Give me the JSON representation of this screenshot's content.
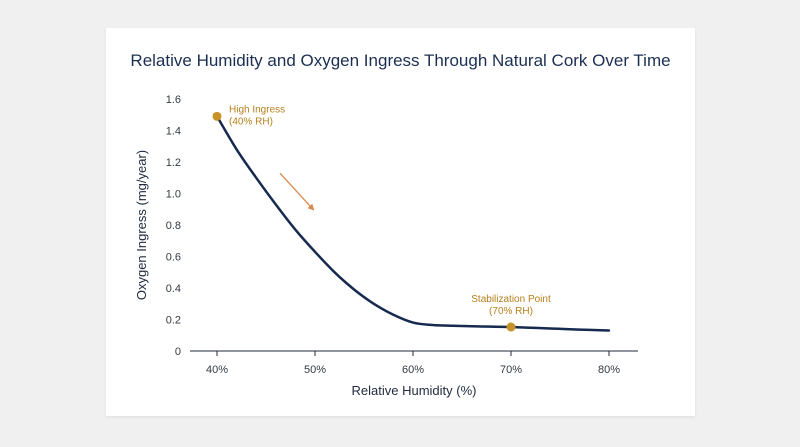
{
  "chart_data": {
    "type": "line",
    "title": "Relative Humidity and Oxygen Ingress Through Natural Cork Over Time",
    "xlabel": "Relative Humidity (%)",
    "ylabel": "Oxygen Ingress (mg/year)",
    "x_ticks": [
      "40%",
      "50%",
      "60%",
      "70%",
      "80%"
    ],
    "y_ticks": [
      "0",
      "0.2",
      "0.4",
      "0.6",
      "0.8",
      "1.0",
      "1.2",
      "1.4",
      "1.6"
    ],
    "xlim": [
      40,
      80
    ],
    "ylim": [
      0,
      1.6
    ],
    "grid": false,
    "series": [
      {
        "x": [
          40,
          42,
          44,
          46,
          48,
          50,
          52,
          54,
          56,
          58,
          60,
          62,
          64,
          66,
          68,
          70,
          72,
          74,
          76,
          78,
          80
        ],
        "y": [
          1.49,
          1.28,
          1.1,
          0.93,
          0.77,
          0.63,
          0.5,
          0.39,
          0.3,
          0.23,
          0.18,
          0.165,
          0.16,
          0.157,
          0.155,
          0.152,
          0.148,
          0.143,
          0.138,
          0.134,
          0.13
        ],
        "color": "#162a4f"
      }
    ],
    "annotations": [
      {
        "x": 40,
        "y": 1.49,
        "lines": [
          "High Ingress",
          "(40% RH)"
        ],
        "color": "#c8922a"
      },
      {
        "x": 70,
        "y": 0.152,
        "lines": [
          "Stabilization Point",
          "(70% RH)"
        ],
        "color": "#c8922a"
      }
    ],
    "trend_arrow_color": "#d9884e"
  }
}
